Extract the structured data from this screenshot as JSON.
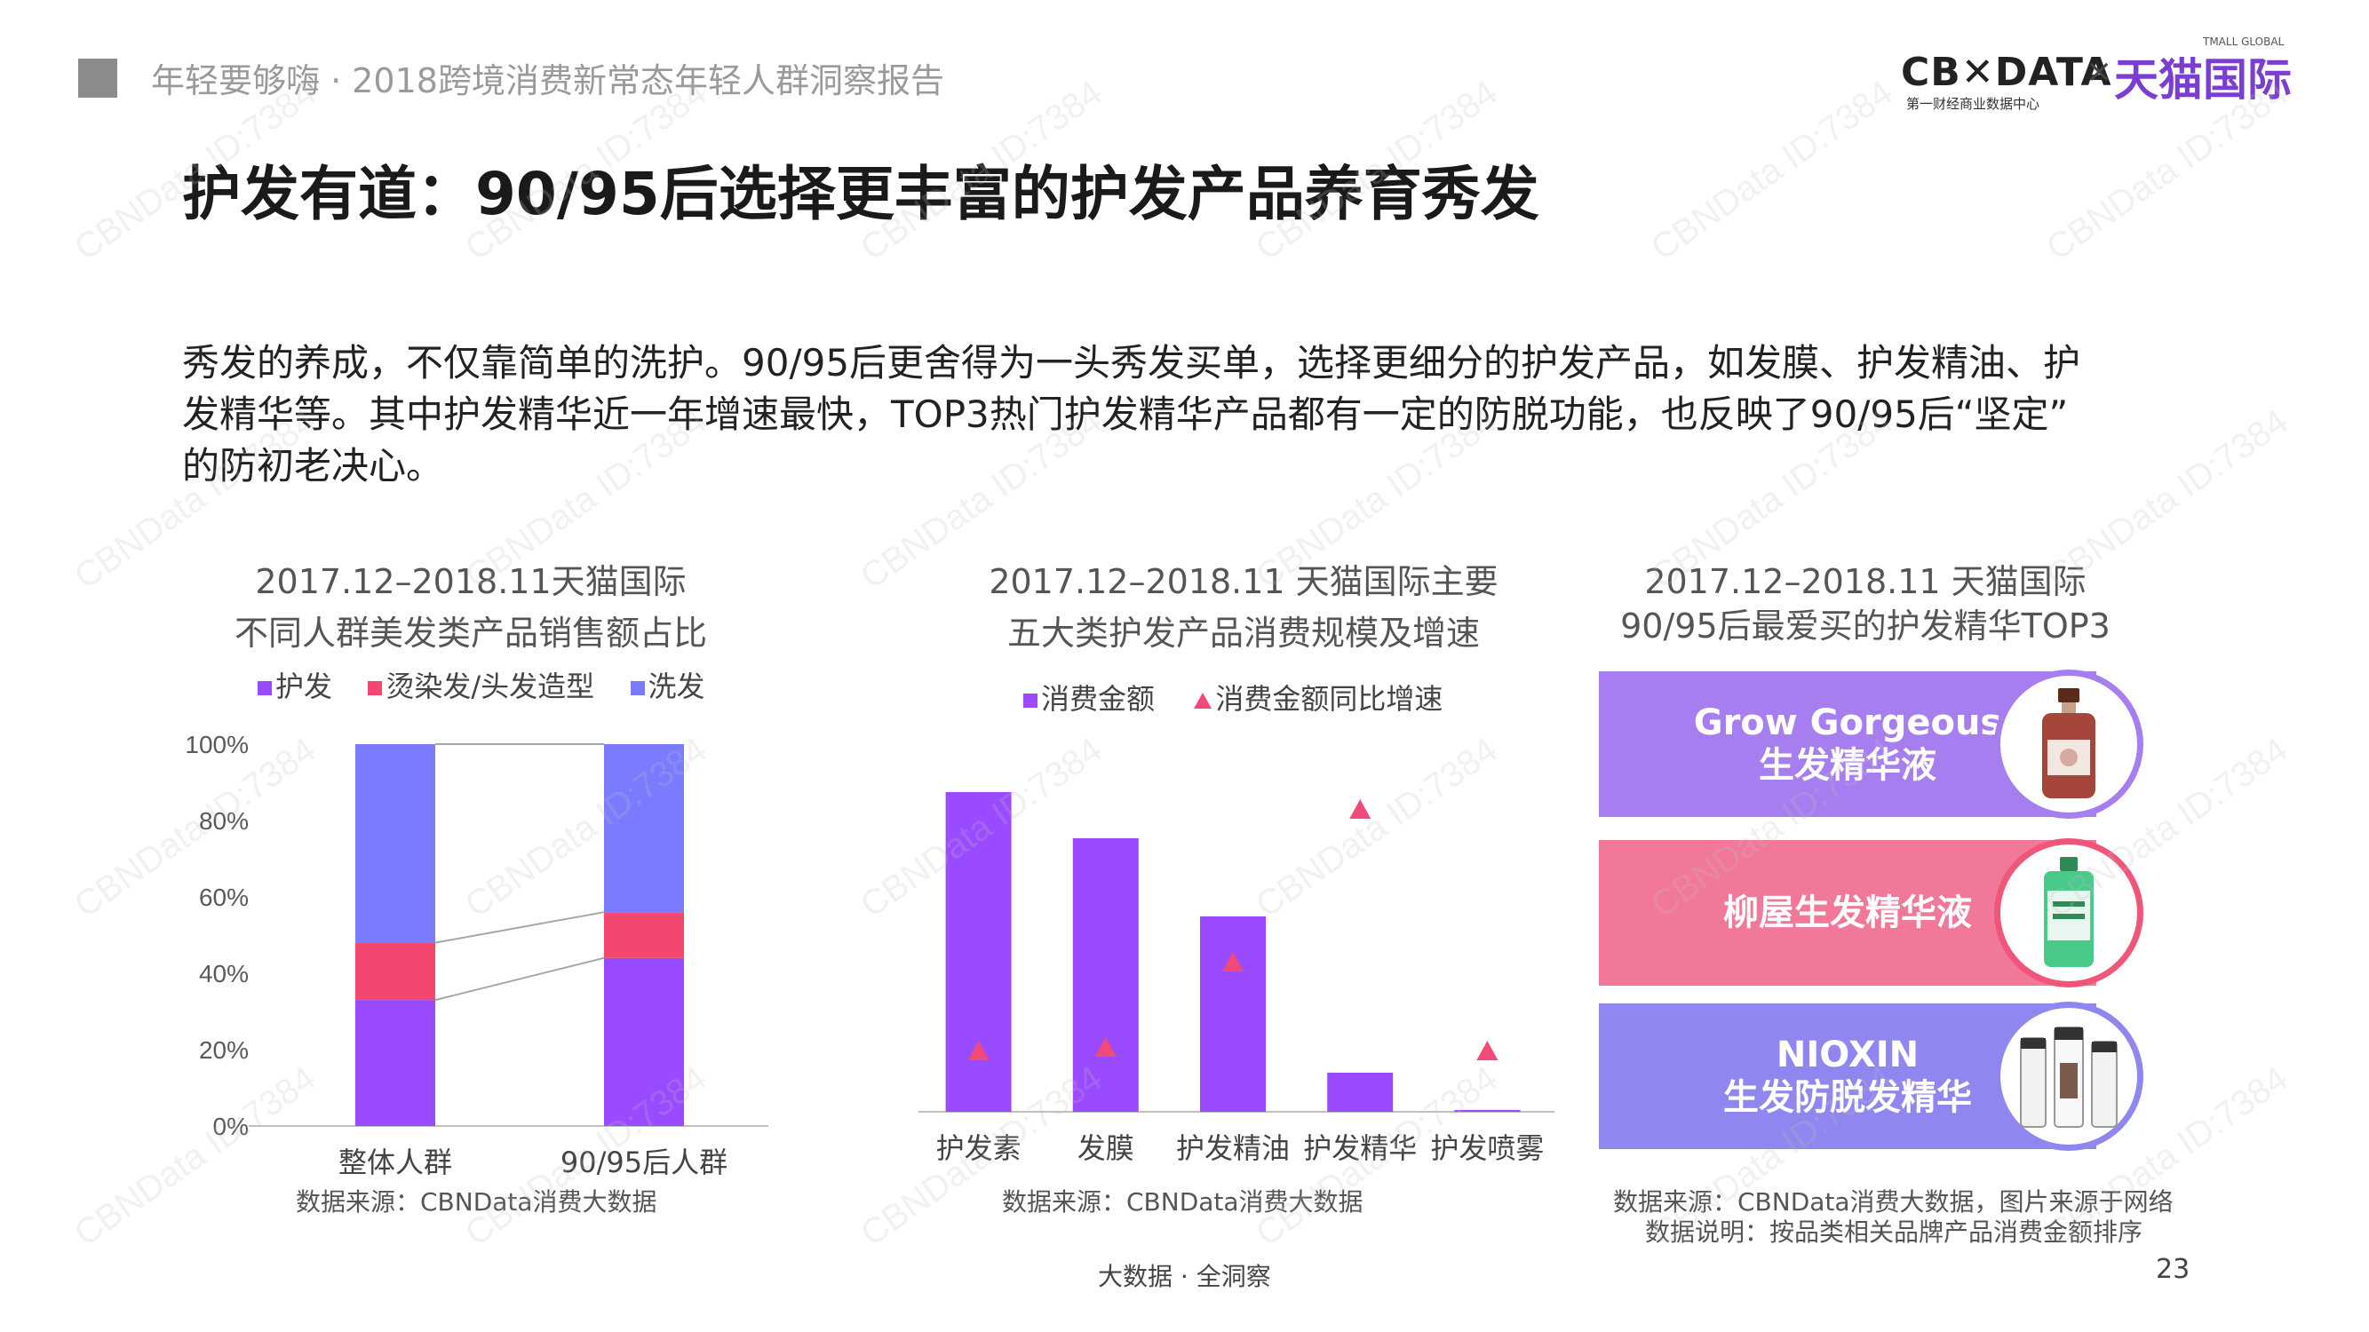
{
  "header": {
    "report_title": "年轻要够嗨 · 2018跨境消费新常态年轻人群洞察报告",
    "logo_cbn": "CB✕DATA",
    "logo_times": "×",
    "logo_tmall": "天猫国际",
    "logo_tmall_small": "TMALL GLOBAL",
    "logo_sub": "第一财经商业数据中心"
  },
  "page_title": "护发有道：90/95后选择更丰富的护发产品养育秀发",
  "intro_lines": [
    "秀发的养成，不仅靠简单的洗护。90/95后更舍得为一头秀发买单，选择更细分的护发产品，如发膜、护发精油、护",
    "发精华等。其中护发精华近一年增速最快，TOP3热门护发精华产品都有一定的防脱功能，也反映了90/95后“坚定”",
    "的防初老决心。"
  ],
  "chart1": {
    "title_line1": "2017.12–2018.11天猫国际",
    "title_line2": "不同人群美发类产品销售额占比",
    "source": "数据来源：CBNData消费大数据"
  },
  "chart2": {
    "title_line1": "2017.12–2018.11 天猫国际主要",
    "title_line2": "五大类护发产品消费规模及增速",
    "source": "数据来源：CBNData消费大数据"
  },
  "panel3": {
    "title_line1": "2017.12–2018.11 天猫国际",
    "title_line2": "90/95后最爱买的护发精华TOP3",
    "products": [
      {
        "line1": "Grow Gorgeous",
        "line2": "生发精华液",
        "color": "#a77ef0"
      },
      {
        "line1": "柳屋生发精华液",
        "line2": "",
        "color": "#f2789a"
      },
      {
        "line1": "NIOXIN",
        "line2": "生发防脱发精华",
        "color": "#8f86f0"
      }
    ],
    "source_line1": "数据来源：CBNData消费大数据，图片来源于网络",
    "source_line2": "数据说明：按品类相关品牌产品消费金额排序"
  },
  "footer": {
    "tagline": "大数据 · 全洞察",
    "page_number": "23"
  },
  "watermark": "CBNData ID:7384",
  "colors": {
    "purple": "#9b4bff",
    "pink": "#f4476f",
    "blue": "#7b7bff",
    "triangle": "#f04a78"
  },
  "chart_data": [
    {
      "type": "bar",
      "stacked": true,
      "percent": true,
      "categories": [
        "整体人群",
        "90/95后人群"
      ],
      "series": [
        {
          "name": "护发",
          "values": [
            33,
            44
          ]
        },
        {
          "name": "烫染发/头发造型",
          "values": [
            15,
            12
          ]
        },
        {
          "name": "洗发",
          "values": [
            52,
            44
          ]
        }
      ],
      "yticks": [
        "0%",
        "20%",
        "40%",
        "60%",
        "80%",
        "100%"
      ],
      "ylim": [
        0,
        100
      ],
      "legend": "top"
    },
    {
      "type": "bar",
      "categories": [
        "护发素",
        "发膜",
        "护发精油",
        "护发精华",
        "护发喷雾"
      ],
      "series": [
        {
          "name": "消费金额",
          "kind": "bar",
          "values": [
            90,
            77,
            55,
            11,
            0.5
          ]
        },
        {
          "name": "消费金额同比增速",
          "kind": "marker",
          "values": [
            17,
            18,
            42,
            85,
            17
          ]
        }
      ],
      "ylim": [
        0,
        100
      ],
      "axis_labels_shown": false,
      "legend": "top"
    }
  ]
}
